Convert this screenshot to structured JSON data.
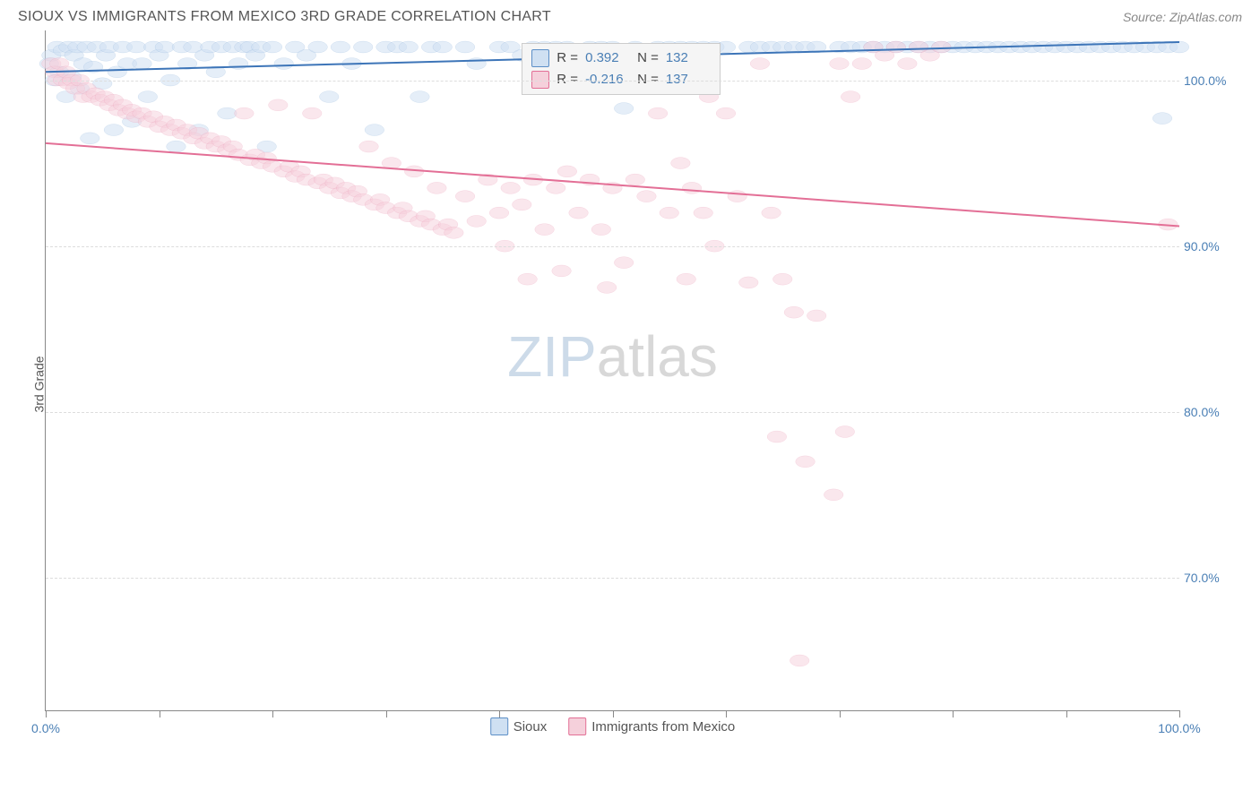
{
  "header": {
    "title": "SIOUX VS IMMIGRANTS FROM MEXICO 3RD GRADE CORRELATION CHART",
    "source": "Source: ZipAtlas.com"
  },
  "watermark": {
    "part1": "ZIP",
    "part2": "atlas"
  },
  "chart": {
    "type": "scatter",
    "y_axis_label": "3rd Grade",
    "xlim": [
      0,
      100
    ],
    "ylim": [
      62,
      103
    ],
    "x_ticks": [
      0,
      10,
      20,
      30,
      40,
      50,
      60,
      70,
      80,
      90,
      100
    ],
    "x_tick_labels": {
      "0": "0.0%",
      "100": "100.0%"
    },
    "y_grid": [
      70,
      80,
      90,
      100
    ],
    "y_tick_labels": {
      "70": "70.0%",
      "80": "80.0%",
      "90": "90.0%",
      "100": "100.0%"
    },
    "background_color": "#ffffff",
    "grid_color": "#dddddd",
    "axis_label_color": "#4a7fb5",
    "marker_radius": 9,
    "marker_stroke_width": 1.2,
    "trend_line_width": 2,
    "series": [
      {
        "name": "Sioux",
        "marker_fill": "#cfe0f2",
        "marker_stroke": "#5c8fc7",
        "fill_opacity": 0.55,
        "trend_color": "#3d75b8",
        "trend": {
          "x1": 0,
          "y1": 100.5,
          "x2": 100,
          "y2": 102.3
        },
        "stats": {
          "R": "0.392",
          "N": "132"
        },
        "points": [
          [
            0.3,
            101
          ],
          [
            0.5,
            101.5
          ],
          [
            0.8,
            100
          ],
          [
            1.0,
            102
          ],
          [
            1.2,
            100.5
          ],
          [
            1.5,
            101.8
          ],
          [
            1.8,
            99
          ],
          [
            2.0,
            102
          ],
          [
            2.3,
            100.2
          ],
          [
            2.5,
            101.5
          ],
          [
            2.8,
            102
          ],
          [
            3.0,
            99.5
          ],
          [
            3.3,
            101
          ],
          [
            3.6,
            102
          ],
          [
            3.9,
            96.5
          ],
          [
            4.2,
            100.8
          ],
          [
            4.5,
            102
          ],
          [
            5.0,
            99.8
          ],
          [
            5.3,
            101.5
          ],
          [
            5.6,
            102
          ],
          [
            6.0,
            97
          ],
          [
            6.3,
            100.5
          ],
          [
            6.8,
            102
          ],
          [
            7.2,
            101
          ],
          [
            7.6,
            97.5
          ],
          [
            8.0,
            102
          ],
          [
            8.5,
            101
          ],
          [
            9.0,
            99
          ],
          [
            9.5,
            102
          ],
          [
            10.0,
            101.5
          ],
          [
            10.5,
            102
          ],
          [
            11.0,
            100
          ],
          [
            11.5,
            96
          ],
          [
            12.0,
            102
          ],
          [
            12.5,
            101
          ],
          [
            13.0,
            102
          ],
          [
            13.5,
            97
          ],
          [
            14.0,
            101.5
          ],
          [
            14.5,
            102
          ],
          [
            15.0,
            100.5
          ],
          [
            15.5,
            102
          ],
          [
            16.0,
            98
          ],
          [
            16.5,
            102
          ],
          [
            17.0,
            101
          ],
          [
            17.5,
            102
          ],
          [
            18.0,
            102
          ],
          [
            18.5,
            101.5
          ],
          [
            19.0,
            102
          ],
          [
            19.5,
            96
          ],
          [
            20.0,
            102
          ],
          [
            21.0,
            101
          ],
          [
            22.0,
            102
          ],
          [
            23.0,
            101.5
          ],
          [
            24.0,
            102
          ],
          [
            25.0,
            99
          ],
          [
            26.0,
            102
          ],
          [
            27.0,
            101
          ],
          [
            28.0,
            102
          ],
          [
            29.0,
            97
          ],
          [
            30.0,
            102
          ],
          [
            31.0,
            102
          ],
          [
            32.0,
            102
          ],
          [
            33.0,
            99
          ],
          [
            34.0,
            102
          ],
          [
            35.0,
            102
          ],
          [
            37.0,
            102
          ],
          [
            38.0,
            101
          ],
          [
            40.0,
            102
          ],
          [
            41,
            102
          ],
          [
            42,
            101.5
          ],
          [
            43,
            102
          ],
          [
            44,
            102
          ],
          [
            45,
            102
          ],
          [
            46,
            102
          ],
          [
            47,
            101
          ],
          [
            48,
            102
          ],
          [
            49,
            102
          ],
          [
            50,
            102
          ],
          [
            51,
            98.3
          ],
          [
            52,
            102
          ],
          [
            54,
            102
          ],
          [
            55,
            102
          ],
          [
            56,
            102
          ],
          [
            57,
            102
          ],
          [
            58,
            102
          ],
          [
            59,
            102
          ],
          [
            60,
            102
          ],
          [
            62,
            102
          ],
          [
            63,
            102
          ],
          [
            64,
            102
          ],
          [
            65,
            102
          ],
          [
            66,
            102
          ],
          [
            67,
            102
          ],
          [
            68,
            102
          ],
          [
            70,
            102
          ],
          [
            71,
            102
          ],
          [
            72,
            102
          ],
          [
            73,
            102
          ],
          [
            74,
            102
          ],
          [
            75,
            102
          ],
          [
            76,
            102
          ],
          [
            77,
            102
          ],
          [
            78,
            102
          ],
          [
            79,
            102
          ],
          [
            80,
            102
          ],
          [
            81,
            102
          ],
          [
            82,
            102
          ],
          [
            83,
            102
          ],
          [
            84,
            102
          ],
          [
            85,
            102
          ],
          [
            86,
            102
          ],
          [
            87,
            102
          ],
          [
            88,
            102
          ],
          [
            89,
            102
          ],
          [
            90,
            102
          ],
          [
            91,
            102
          ],
          [
            92,
            102
          ],
          [
            93,
            102
          ],
          [
            94,
            102
          ],
          [
            95,
            102
          ],
          [
            96,
            102
          ],
          [
            97,
            102
          ],
          [
            98,
            102
          ],
          [
            98.5,
            97.7
          ],
          [
            99,
            102
          ],
          [
            100,
            102
          ]
        ]
      },
      {
        "name": "Immigrants from Mexico",
        "marker_fill": "#f5d0db",
        "marker_stroke": "#e36f96",
        "fill_opacity": 0.5,
        "trend_color": "#e36f96",
        "trend": {
          "x1": 0,
          "y1": 96.2,
          "x2": 100,
          "y2": 91.2
        },
        "stats": {
          "R": "-0.216",
          "N": "137"
        },
        "points": [
          [
            0.5,
            101
          ],
          [
            0.8,
            100.5
          ],
          [
            1.0,
            100
          ],
          [
            1.2,
            101
          ],
          [
            1.5,
            100
          ],
          [
            1.8,
            100.5
          ],
          [
            2.0,
            99.8
          ],
          [
            2.3,
            100
          ],
          [
            2.6,
            99.5
          ],
          [
            3.0,
            100
          ],
          [
            3.3,
            99
          ],
          [
            3.6,
            99.5
          ],
          [
            4.0,
            99
          ],
          [
            4.4,
            99.2
          ],
          [
            4.8,
            98.8
          ],
          [
            5.2,
            99
          ],
          [
            5.6,
            98.5
          ],
          [
            6.0,
            98.8
          ],
          [
            6.4,
            98.2
          ],
          [
            6.8,
            98.5
          ],
          [
            7.2,
            98
          ],
          [
            7.6,
            98.2
          ],
          [
            8.0,
            97.8
          ],
          [
            8.5,
            98
          ],
          [
            9.0,
            97.5
          ],
          [
            9.5,
            97.8
          ],
          [
            10.0,
            97.2
          ],
          [
            10.5,
            97.5
          ],
          [
            11.0,
            97
          ],
          [
            11.5,
            97.3
          ],
          [
            12.0,
            96.8
          ],
          [
            12.5,
            97
          ],
          [
            13.0,
            96.5
          ],
          [
            13.5,
            96.8
          ],
          [
            14.0,
            96.2
          ],
          [
            14.5,
            96.5
          ],
          [
            15.0,
            96
          ],
          [
            15.5,
            96.3
          ],
          [
            16.0,
            95.8
          ],
          [
            16.5,
            96
          ],
          [
            17.0,
            95.5
          ],
          [
            17.5,
            98
          ],
          [
            18.0,
            95.2
          ],
          [
            18.5,
            95.5
          ],
          [
            19.0,
            95
          ],
          [
            19.5,
            95.3
          ],
          [
            20.0,
            94.8
          ],
          [
            20.5,
            98.5
          ],
          [
            21.0,
            94.5
          ],
          [
            21.5,
            94.8
          ],
          [
            22.0,
            94.2
          ],
          [
            22.5,
            94.5
          ],
          [
            23.0,
            94
          ],
          [
            23.5,
            98
          ],
          [
            24.0,
            93.8
          ],
          [
            24.5,
            94
          ],
          [
            25.0,
            93.5
          ],
          [
            25.5,
            93.8
          ],
          [
            26.0,
            93.2
          ],
          [
            26.5,
            93.5
          ],
          [
            27.0,
            93
          ],
          [
            27.5,
            93.3
          ],
          [
            28.0,
            92.8
          ],
          [
            28.5,
            96
          ],
          [
            29.0,
            92.5
          ],
          [
            29.5,
            92.8
          ],
          [
            30.0,
            92.3
          ],
          [
            30.5,
            95
          ],
          [
            31.0,
            92
          ],
          [
            31.5,
            92.3
          ],
          [
            32.0,
            91.8
          ],
          [
            32.5,
            94.5
          ],
          [
            33.0,
            91.5
          ],
          [
            33.5,
            91.8
          ],
          [
            34.0,
            91.3
          ],
          [
            34.5,
            93.5
          ],
          [
            35.0,
            91
          ],
          [
            35.5,
            91.3
          ],
          [
            36.0,
            90.8
          ],
          [
            37.0,
            93
          ],
          [
            38.0,
            91.5
          ],
          [
            39.0,
            94
          ],
          [
            40.0,
            92
          ],
          [
            40.5,
            90
          ],
          [
            41.0,
            93.5
          ],
          [
            42.0,
            92.5
          ],
          [
            42.5,
            88
          ],
          [
            43.0,
            94
          ],
          [
            44.0,
            91
          ],
          [
            45.0,
            93.5
          ],
          [
            45.5,
            88.5
          ],
          [
            46.0,
            94.5
          ],
          [
            47.0,
            92
          ],
          [
            48.0,
            94
          ],
          [
            49.0,
            91
          ],
          [
            49.5,
            87.5
          ],
          [
            50.0,
            93.5
          ],
          [
            51.0,
            89
          ],
          [
            52.0,
            94
          ],
          [
            53.0,
            93
          ],
          [
            54.0,
            98
          ],
          [
            55.0,
            92
          ],
          [
            56.0,
            95
          ],
          [
            56.5,
            88
          ],
          [
            57.0,
            93.5
          ],
          [
            58.0,
            92
          ],
          [
            58.5,
            99
          ],
          [
            59.0,
            90
          ],
          [
            60,
            98
          ],
          [
            61.0,
            93
          ],
          [
            62,
            87.8
          ],
          [
            63,
            101
          ],
          [
            64,
            92
          ],
          [
            65,
            88
          ],
          [
            66,
            86
          ],
          [
            68,
            85.8
          ],
          [
            70,
            101
          ],
          [
            71,
            99
          ],
          [
            72,
            101
          ],
          [
            73,
            102
          ],
          [
            74,
            101.5
          ],
          [
            75,
            102
          ],
          [
            76,
            101
          ],
          [
            77,
            102
          ],
          [
            78,
            101.5
          ],
          [
            79,
            102
          ],
          [
            64.5,
            78.5
          ],
          [
            66.5,
            65
          ],
          [
            67,
            77
          ],
          [
            69.5,
            75
          ],
          [
            70.5,
            78.8
          ],
          [
            99,
            91.3
          ]
        ]
      }
    ],
    "legend": [
      {
        "label": "Sioux",
        "fill": "#cfe0f2",
        "stroke": "#5c8fc7"
      },
      {
        "label": "Immigrants from Mexico",
        "fill": "#f5d0db",
        "stroke": "#e36f96"
      }
    ],
    "stats_box": {
      "left_pct": 42,
      "top_pct": 1.8
    }
  }
}
